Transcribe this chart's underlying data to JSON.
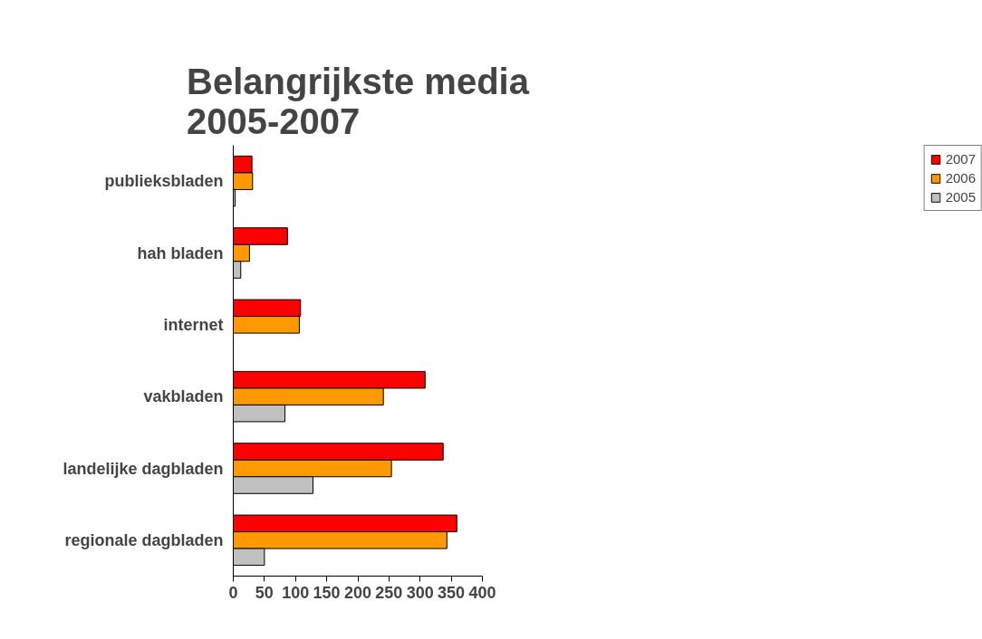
{
  "chart_data": {
    "type": "bar",
    "orientation": "horizontal",
    "title": "Belangrijkste media\n2005-2007",
    "categories": [
      "publieksbladen",
      "hah bladen",
      "internet",
      "vakbladen",
      "landelijke dagbladen",
      "regionale dagbladen"
    ],
    "series": [
      {
        "name": "2007",
        "color": "#ff0000",
        "values": [
          30,
          87,
          108,
          308,
          337,
          359
        ]
      },
      {
        "name": "2006",
        "color": "#ff9900",
        "values": [
          31,
          26,
          106,
          241,
          254,
          343
        ]
      },
      {
        "name": "2005",
        "color": "#c0c0c0",
        "values": [
          3,
          12,
          null,
          83,
          128,
          50
        ]
      }
    ],
    "xlim": [
      0,
      400
    ],
    "xticks": [
      0,
      50,
      100,
      150,
      200,
      250,
      300,
      350,
      400
    ],
    "grid": false,
    "legend": "right"
  }
}
